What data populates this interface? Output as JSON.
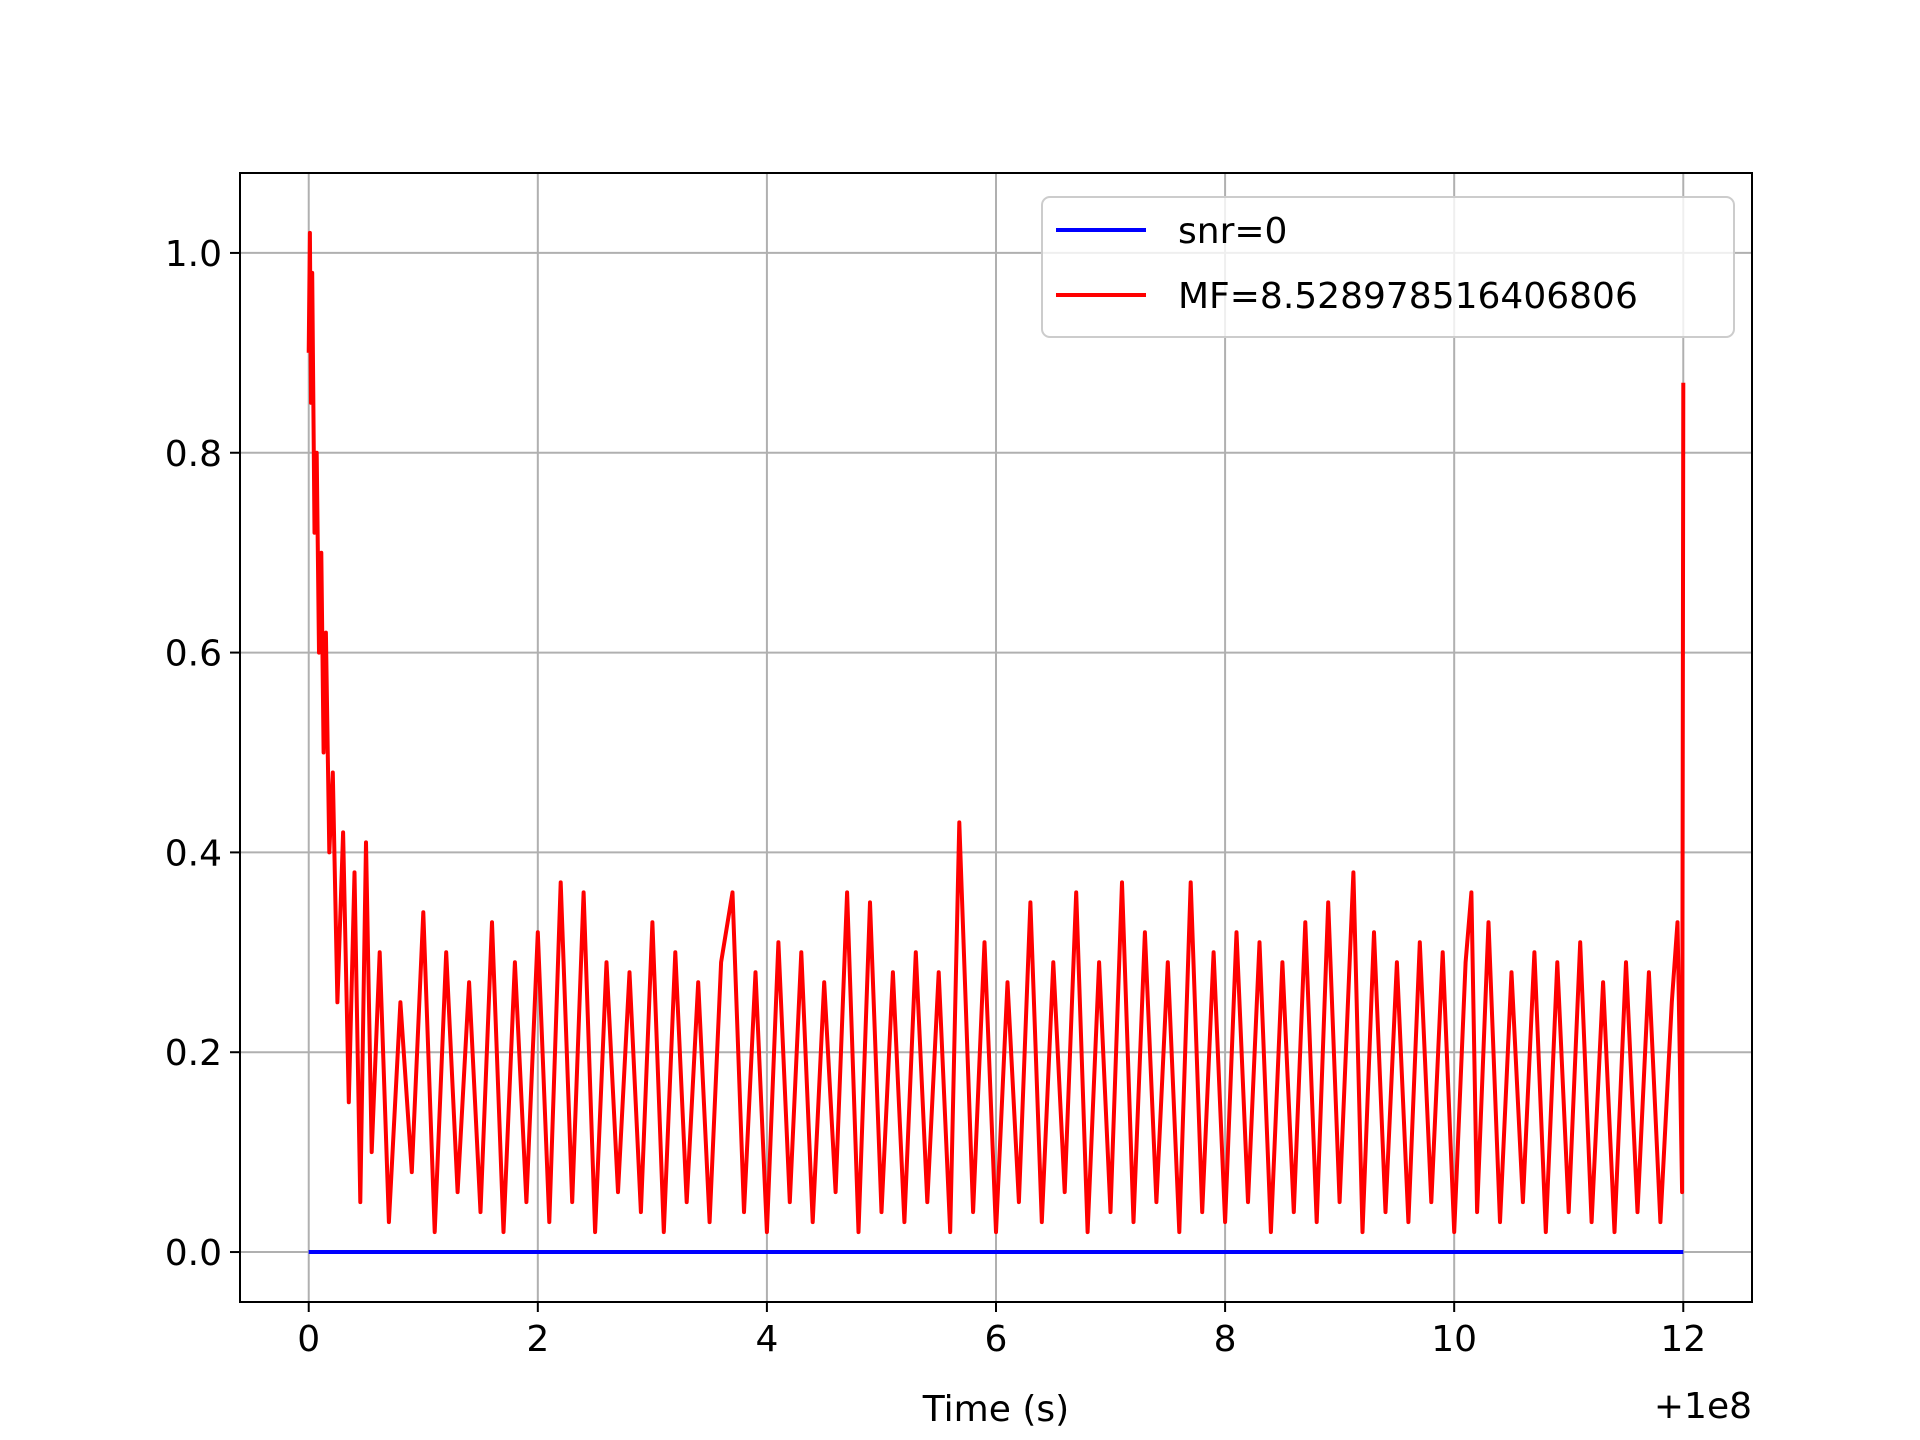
{
  "chart_data": {
    "type": "line",
    "xlabel": "Time (s)",
    "ylabel": "",
    "x_offset_label": "+1e8",
    "xlim": [
      -0.6,
      12.6
    ],
    "ylim": [
      -0.05,
      1.08
    ],
    "x_ticks": [
      0,
      2,
      4,
      6,
      8,
      10,
      12
    ],
    "x_tick_labels": [
      "0",
      "2",
      "4",
      "6",
      "8",
      "10",
      "12"
    ],
    "y_ticks": [
      0.0,
      0.2,
      0.4,
      0.6,
      0.8,
      1.0
    ],
    "y_tick_labels": [
      "0.0",
      "0.2",
      "0.4",
      "0.6",
      "0.8",
      "1.0"
    ],
    "grid": true,
    "legend_position": "top-right",
    "series": [
      {
        "name": "snr=0",
        "color": "#0000ff",
        "x": [
          0,
          12
        ],
        "y": [
          0,
          0
        ]
      },
      {
        "name": "MF=8.528978516406806",
        "color": "#ff0000",
        "x": [
          0.0,
          0.01,
          0.02,
          0.03,
          0.05,
          0.07,
          0.09,
          0.11,
          0.13,
          0.15,
          0.18,
          0.21,
          0.25,
          0.3,
          0.35,
          0.4,
          0.45,
          0.5,
          0.55,
          0.62,
          0.7,
          0.8,
          0.9,
          1.0,
          1.1,
          1.2,
          1.3,
          1.4,
          1.5,
          1.6,
          1.7,
          1.8,
          1.9,
          2.0,
          2.1,
          2.2,
          2.3,
          2.4,
          2.5,
          2.6,
          2.7,
          2.8,
          2.9,
          3.0,
          3.1,
          3.2,
          3.3,
          3.4,
          3.5,
          3.6,
          3.7,
          3.8,
          3.9,
          4.0,
          4.1,
          4.2,
          4.3,
          4.4,
          4.5,
          4.6,
          4.7,
          4.8,
          4.9,
          5.0,
          5.1,
          5.2,
          5.3,
          5.4,
          5.5,
          5.6,
          5.68,
          5.8,
          5.9,
          6.0,
          6.1,
          6.2,
          6.3,
          6.4,
          6.5,
          6.6,
          6.7,
          6.8,
          6.9,
          7.0,
          7.1,
          7.2,
          7.3,
          7.4,
          7.5,
          7.6,
          7.7,
          7.8,
          7.9,
          8.0,
          8.1,
          8.2,
          8.3,
          8.4,
          8.5,
          8.6,
          8.7,
          8.8,
          8.9,
          9.0,
          9.12,
          9.2,
          9.3,
          9.4,
          9.5,
          9.6,
          9.7,
          9.8,
          9.9,
          10.0,
          10.1,
          10.15,
          10.2,
          10.3,
          10.4,
          10.5,
          10.6,
          10.7,
          10.8,
          10.9,
          11.0,
          11.1,
          11.2,
          11.3,
          11.4,
          11.5,
          11.6,
          11.7,
          11.8,
          11.9,
          11.95,
          11.99,
          12.0
        ],
        "y": [
          0.9,
          1.02,
          0.85,
          0.98,
          0.72,
          0.8,
          0.6,
          0.7,
          0.5,
          0.62,
          0.4,
          0.48,
          0.25,
          0.42,
          0.15,
          0.38,
          0.05,
          0.41,
          0.1,
          0.3,
          0.03,
          0.25,
          0.08,
          0.34,
          0.02,
          0.3,
          0.06,
          0.27,
          0.04,
          0.33,
          0.02,
          0.29,
          0.05,
          0.32,
          0.03,
          0.37,
          0.05,
          0.36,
          0.02,
          0.29,
          0.06,
          0.28,
          0.04,
          0.33,
          0.02,
          0.3,
          0.05,
          0.27,
          0.03,
          0.29,
          0.36,
          0.04,
          0.28,
          0.02,
          0.31,
          0.05,
          0.3,
          0.03,
          0.27,
          0.06,
          0.36,
          0.02,
          0.35,
          0.04,
          0.28,
          0.03,
          0.3,
          0.05,
          0.28,
          0.02,
          0.43,
          0.04,
          0.31,
          0.02,
          0.27,
          0.05,
          0.35,
          0.03,
          0.29,
          0.06,
          0.36,
          0.02,
          0.29,
          0.04,
          0.37,
          0.03,
          0.32,
          0.05,
          0.29,
          0.02,
          0.37,
          0.04,
          0.3,
          0.03,
          0.32,
          0.05,
          0.31,
          0.02,
          0.29,
          0.04,
          0.33,
          0.03,
          0.35,
          0.05,
          0.38,
          0.02,
          0.32,
          0.04,
          0.29,
          0.03,
          0.31,
          0.05,
          0.3,
          0.02,
          0.29,
          0.36,
          0.04,
          0.33,
          0.03,
          0.28,
          0.05,
          0.3,
          0.02,
          0.29,
          0.04,
          0.31,
          0.03,
          0.27,
          0.02,
          0.29,
          0.04,
          0.28,
          0.03,
          0.25,
          0.33,
          0.06,
          0.87
        ]
      }
    ]
  }
}
